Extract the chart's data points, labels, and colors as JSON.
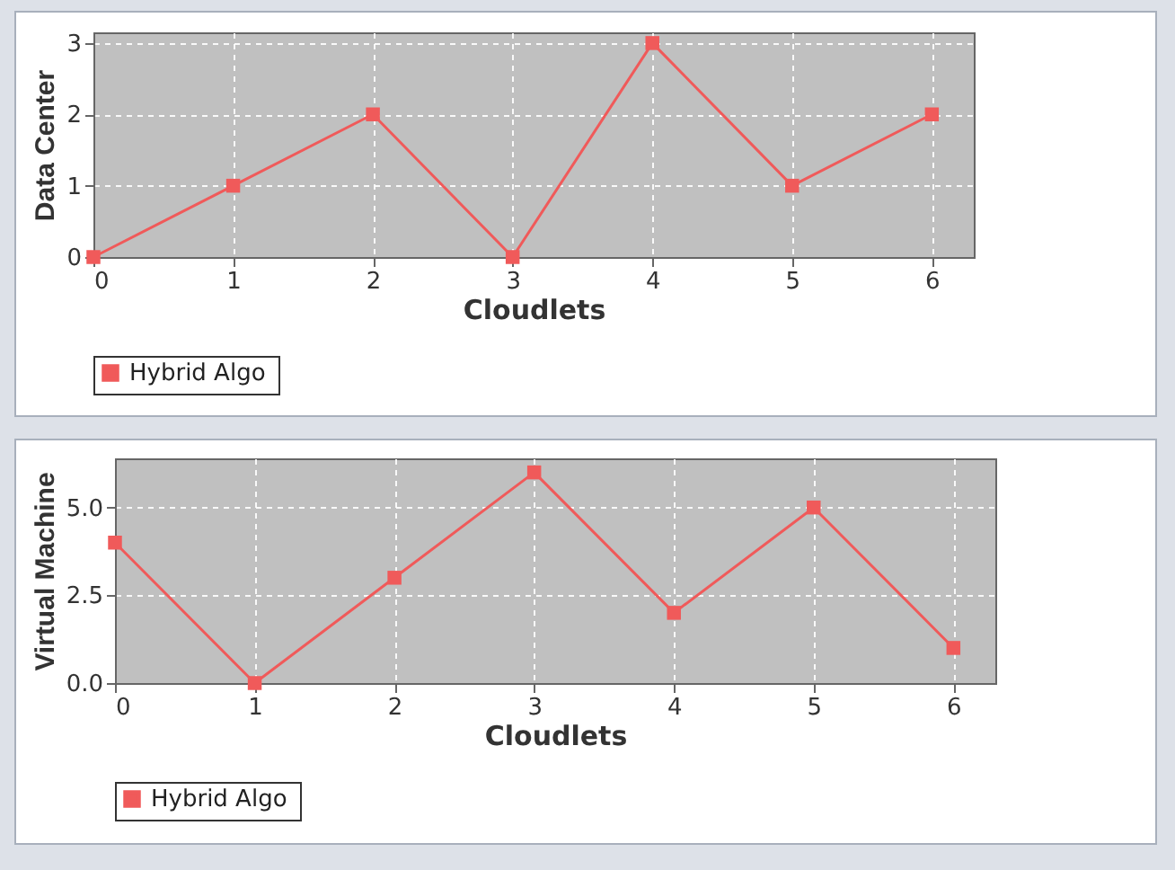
{
  "chart_data": [
    {
      "type": "line",
      "xlabel": "Cloudlets",
      "ylabel": "Data Center",
      "x": [
        0,
        1,
        2,
        3,
        4,
        5,
        6
      ],
      "xlim": [
        0,
        6.3
      ],
      "xticks": [
        0,
        1,
        2,
        3,
        4,
        5,
        6
      ],
      "ylim": [
        0,
        3.15
      ],
      "yticks": [
        0,
        1,
        2,
        3
      ],
      "grid": true,
      "legend": "bottom",
      "marker": "square",
      "line_style": "solid",
      "series": [
        {
          "name": "Hybrid  Algo",
          "color": "#f05a5a",
          "values": [
            0,
            1,
            2,
            0,
            3,
            1,
            2
          ]
        }
      ]
    },
    {
      "type": "line",
      "xlabel": "Cloudlets",
      "ylabel": "Virtual Machine",
      "x": [
        0,
        1,
        2,
        3,
        4,
        5,
        6
      ],
      "xlim": [
        0,
        6.3
      ],
      "xticks": [
        0,
        1,
        2,
        3,
        4,
        5,
        6
      ],
      "ylim": [
        0,
        6.4
      ],
      "yticks": [
        {
          "value": 0,
          "label": "0.0"
        },
        {
          "value": 2.5,
          "label": "2.5"
        },
        {
          "value": 5,
          "label": "5.0"
        }
      ],
      "grid": true,
      "legend": "bottom",
      "marker": "square",
      "line_style": "solid",
      "series": [
        {
          "name": "Hybrid  Algo",
          "color": "#f05a5a",
          "values": [
            4,
            0,
            3,
            6,
            2,
            5,
            1
          ]
        }
      ]
    }
  ]
}
